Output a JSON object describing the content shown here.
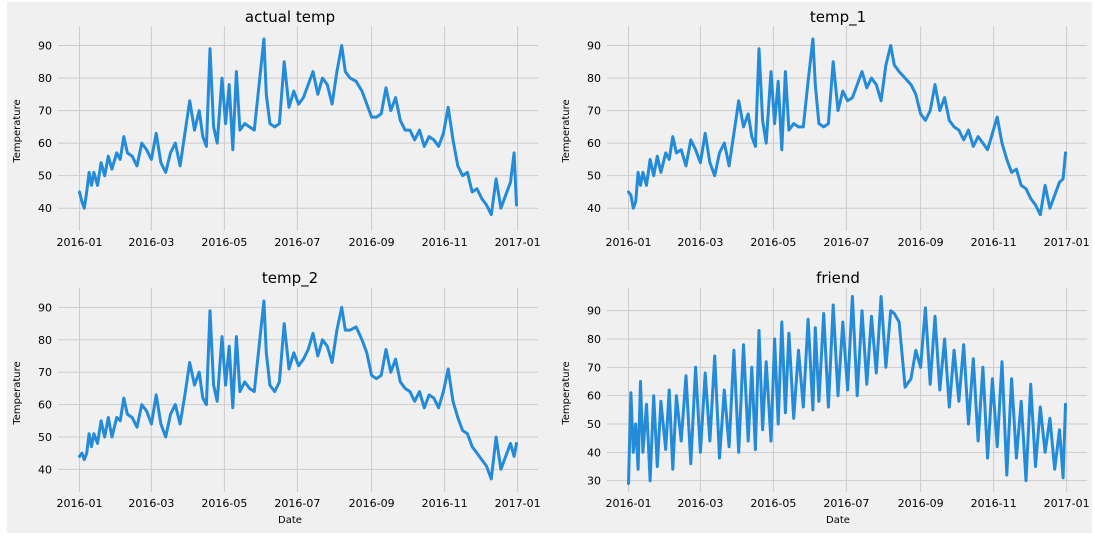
{
  "chart_data": [
    {
      "type": "line",
      "title": "actual temp",
      "xlabel": "",
      "ylabel": "Temperature",
      "x_ticks": [
        "2016-01",
        "2016-03",
        "2016-05",
        "2016-07",
        "2016-09",
        "2016-11",
        "2017-01"
      ],
      "y_ticks": [
        40,
        50,
        60,
        70,
        80,
        90
      ],
      "xlim": [
        "2015-12-14",
        "2017-01-18"
      ],
      "ylim": [
        33,
        96
      ],
      "grid": true,
      "color": "#238bd8",
      "series": [
        {
          "x": [
            "2016-01-01",
            "2016-01-03",
            "2016-01-05",
            "2016-01-07",
            "2016-01-09",
            "2016-01-11",
            "2016-01-13",
            "2016-01-16",
            "2016-01-19",
            "2016-01-22",
            "2016-01-25",
            "2016-01-28",
            "2016-02-01",
            "2016-02-04",
            "2016-02-07",
            "2016-02-10",
            "2016-02-14",
            "2016-02-18",
            "2016-02-22",
            "2016-02-26",
            "2016-03-01",
            "2016-03-05",
            "2016-03-09",
            "2016-03-13",
            "2016-03-17",
            "2016-03-21",
            "2016-03-25",
            "2016-03-29",
            "2016-04-02",
            "2016-04-06",
            "2016-04-10",
            "2016-04-13",
            "2016-04-16",
            "2016-04-19",
            "2016-04-22",
            "2016-04-25",
            "2016-04-29",
            "2016-05-02",
            "2016-05-05",
            "2016-05-08",
            "2016-05-11",
            "2016-05-14",
            "2016-05-18",
            "2016-05-22",
            "2016-05-26",
            "2016-05-30",
            "2016-06-03",
            "2016-06-05",
            "2016-06-08",
            "2016-06-12",
            "2016-06-16",
            "2016-06-20",
            "2016-06-24",
            "2016-06-28",
            "2016-07-02",
            "2016-07-06",
            "2016-07-10",
            "2016-07-14",
            "2016-07-18",
            "2016-07-22",
            "2016-07-26",
            "2016-07-30",
            "2016-08-03",
            "2016-08-07",
            "2016-08-10",
            "2016-08-14",
            "2016-08-19",
            "2016-08-24",
            "2016-08-28",
            "2016-09-01",
            "2016-09-05",
            "2016-09-09",
            "2016-09-13",
            "2016-09-17",
            "2016-09-21",
            "2016-09-25",
            "2016-09-29",
            "2016-10-03",
            "2016-10-07",
            "2016-10-11",
            "2016-10-15",
            "2016-10-19",
            "2016-10-23",
            "2016-10-27",
            "2016-10-31",
            "2016-11-04",
            "2016-11-08",
            "2016-11-12",
            "2016-11-16",
            "2016-11-20",
            "2016-11-24",
            "2016-11-28",
            "2016-12-02",
            "2016-12-06",
            "2016-12-10",
            "2016-12-14",
            "2016-12-18",
            "2016-12-22",
            "2016-12-26",
            "2016-12-29",
            "2016-12-31"
          ],
          "y": [
            45,
            42,
            40,
            45,
            51,
            47,
            51,
            47,
            54,
            50,
            56,
            52,
            57,
            55,
            62,
            57,
            56,
            53,
            60,
            58,
            55,
            63,
            54,
            51,
            57,
            60,
            53,
            63,
            73,
            64,
            70,
            62,
            59,
            89,
            65,
            60,
            80,
            66,
            78,
            58,
            82,
            64,
            66,
            65,
            64,
            78,
            92,
            75,
            66,
            65,
            66,
            85,
            71,
            76,
            72,
            74,
            78,
            82,
            75,
            80,
            78,
            72,
            82,
            90,
            82,
            80,
            79,
            76,
            72,
            68,
            68,
            69,
            77,
            70,
            74,
            67,
            64,
            64,
            61,
            64,
            59,
            62,
            61,
            59,
            63,
            71,
            61,
            53,
            50,
            51,
            45,
            46,
            43,
            41,
            38,
            49,
            40,
            44,
            48,
            57,
            41
          ]
        }
      ]
    },
    {
      "type": "line",
      "title": "temp_1",
      "xlabel": "",
      "ylabel": "Temperature",
      "x_ticks": [
        "2016-01",
        "2016-03",
        "2016-05",
        "2016-07",
        "2016-09",
        "2016-11",
        "2017-01"
      ],
      "y_ticks": [
        40,
        50,
        60,
        70,
        80,
        90
      ],
      "xlim": [
        "2015-12-14",
        "2017-01-18"
      ],
      "ylim": [
        33,
        96
      ],
      "grid": true,
      "color": "#238bd8",
      "series": [
        {
          "x": [
            "2016-01-01",
            "2016-01-03",
            "2016-01-05",
            "2016-01-07",
            "2016-01-09",
            "2016-01-11",
            "2016-01-13",
            "2016-01-16",
            "2016-01-19",
            "2016-01-22",
            "2016-01-25",
            "2016-01-28",
            "2016-02-01",
            "2016-02-04",
            "2016-02-07",
            "2016-02-10",
            "2016-02-14",
            "2016-02-18",
            "2016-02-22",
            "2016-02-26",
            "2016-03-01",
            "2016-03-05",
            "2016-03-09",
            "2016-03-13",
            "2016-03-17",
            "2016-03-21",
            "2016-03-25",
            "2016-03-29",
            "2016-04-02",
            "2016-04-06",
            "2016-04-10",
            "2016-04-13",
            "2016-04-16",
            "2016-04-19",
            "2016-04-22",
            "2016-04-25",
            "2016-04-29",
            "2016-05-02",
            "2016-05-05",
            "2016-05-08",
            "2016-05-11",
            "2016-05-14",
            "2016-05-18",
            "2016-05-22",
            "2016-05-26",
            "2016-05-30",
            "2016-06-03",
            "2016-06-05",
            "2016-06-08",
            "2016-06-12",
            "2016-06-16",
            "2016-06-20",
            "2016-06-24",
            "2016-06-28",
            "2016-07-02",
            "2016-07-06",
            "2016-07-10",
            "2016-07-14",
            "2016-07-18",
            "2016-07-22",
            "2016-07-26",
            "2016-07-30",
            "2016-08-03",
            "2016-08-07",
            "2016-08-10",
            "2016-08-14",
            "2016-08-19",
            "2016-08-24",
            "2016-08-28",
            "2016-09-01",
            "2016-09-05",
            "2016-09-09",
            "2016-09-13",
            "2016-09-17",
            "2016-09-21",
            "2016-09-25",
            "2016-09-29",
            "2016-10-03",
            "2016-10-07",
            "2016-10-11",
            "2016-10-15",
            "2016-10-19",
            "2016-10-23",
            "2016-10-27",
            "2016-10-31",
            "2016-11-04",
            "2016-11-08",
            "2016-11-12",
            "2016-11-16",
            "2016-11-20",
            "2016-11-24",
            "2016-11-28",
            "2016-12-02",
            "2016-12-06",
            "2016-12-10",
            "2016-12-14",
            "2016-12-18",
            "2016-12-22",
            "2016-12-26",
            "2016-12-29",
            "2016-12-31"
          ],
          "y": [
            45,
            44,
            40,
            42,
            51,
            47,
            51,
            47,
            55,
            50,
            56,
            51,
            57,
            55,
            62,
            57,
            58,
            53,
            61,
            58,
            54,
            63,
            54,
            50,
            57,
            60,
            53,
            63,
            73,
            65,
            69,
            62,
            59,
            89,
            67,
            60,
            82,
            66,
            79,
            58,
            82,
            64,
            66,
            65,
            65,
            79,
            92,
            78,
            66,
            65,
            66,
            85,
            70,
            76,
            73,
            74,
            78,
            82,
            77,
            80,
            78,
            73,
            84,
            90,
            84,
            82,
            80,
            78,
            75,
            69,
            67,
            70,
            78,
            70,
            74,
            67,
            65,
            64,
            61,
            64,
            59,
            62,
            60,
            58,
            63,
            68,
            60,
            55,
            51,
            52,
            47,
            46,
            43,
            41,
            38,
            47,
            40,
            44,
            48,
            49,
            57
          ]
        }
      ]
    },
    {
      "type": "line",
      "title": "temp_2",
      "xlabel": "Date",
      "ylabel": "Temperature",
      "x_ticks": [
        "2016-01",
        "2016-03",
        "2016-05",
        "2016-07",
        "2016-09",
        "2016-11",
        "2017-01"
      ],
      "y_ticks": [
        40,
        50,
        60,
        70,
        80,
        90
      ],
      "xlim": [
        "2015-12-14",
        "2017-01-18"
      ],
      "ylim": [
        33,
        96
      ],
      "grid": true,
      "color": "#238bd8",
      "series": [
        {
          "x": [
            "2016-01-01",
            "2016-01-03",
            "2016-01-05",
            "2016-01-07",
            "2016-01-09",
            "2016-01-11",
            "2016-01-13",
            "2016-01-16",
            "2016-01-19",
            "2016-01-22",
            "2016-01-25",
            "2016-01-28",
            "2016-02-01",
            "2016-02-04",
            "2016-02-07",
            "2016-02-10",
            "2016-02-14",
            "2016-02-18",
            "2016-02-22",
            "2016-02-26",
            "2016-03-01",
            "2016-03-05",
            "2016-03-09",
            "2016-03-13",
            "2016-03-17",
            "2016-03-21",
            "2016-03-25",
            "2016-03-29",
            "2016-04-02",
            "2016-04-06",
            "2016-04-10",
            "2016-04-13",
            "2016-04-16",
            "2016-04-19",
            "2016-04-22",
            "2016-04-25",
            "2016-04-29",
            "2016-05-02",
            "2016-05-05",
            "2016-05-08",
            "2016-05-11",
            "2016-05-14",
            "2016-05-18",
            "2016-05-22",
            "2016-05-26",
            "2016-05-30",
            "2016-06-03",
            "2016-06-05",
            "2016-06-08",
            "2016-06-12",
            "2016-06-16",
            "2016-06-20",
            "2016-06-24",
            "2016-06-28",
            "2016-07-02",
            "2016-07-06",
            "2016-07-10",
            "2016-07-14",
            "2016-07-18",
            "2016-07-22",
            "2016-07-26",
            "2016-07-30",
            "2016-08-03",
            "2016-08-07",
            "2016-08-10",
            "2016-08-14",
            "2016-08-19",
            "2016-08-24",
            "2016-08-28",
            "2016-09-01",
            "2016-09-05",
            "2016-09-09",
            "2016-09-13",
            "2016-09-17",
            "2016-09-21",
            "2016-09-25",
            "2016-09-29",
            "2016-10-03",
            "2016-10-07",
            "2016-10-11",
            "2016-10-15",
            "2016-10-19",
            "2016-10-23",
            "2016-10-27",
            "2016-10-31",
            "2016-11-04",
            "2016-11-08",
            "2016-11-12",
            "2016-11-16",
            "2016-11-20",
            "2016-11-24",
            "2016-11-28",
            "2016-12-02",
            "2016-12-06",
            "2016-12-10",
            "2016-12-14",
            "2016-12-18",
            "2016-12-22",
            "2016-12-26",
            "2016-12-29",
            "2016-12-31"
          ],
          "y": [
            44,
            45,
            43,
            45,
            51,
            47,
            51,
            48,
            55,
            50,
            56,
            50,
            56,
            55,
            62,
            57,
            56,
            53,
            60,
            58,
            54,
            63,
            54,
            50,
            57,
            60,
            54,
            63,
            73,
            66,
            70,
            62,
            60,
            89,
            66,
            61,
            81,
            66,
            78,
            59,
            81,
            64,
            67,
            65,
            64,
            78,
            92,
            76,
            66,
            64,
            67,
            85,
            71,
            76,
            72,
            74,
            77,
            82,
            75,
            80,
            78,
            73,
            83,
            90,
            83,
            83,
            84,
            80,
            76,
            69,
            68,
            69,
            77,
            70,
            74,
            67,
            65,
            64,
            61,
            64,
            59,
            63,
            62,
            59,
            64,
            71,
            61,
            56,
            52,
            51,
            47,
            45,
            43,
            41,
            37,
            50,
            40,
            44,
            48,
            44,
            48
          ]
        }
      ]
    },
    {
      "type": "line",
      "title": "friend",
      "xlabel": "Date",
      "ylabel": "Temperature",
      "x_ticks": [
        "2016-01",
        "2016-03",
        "2016-05",
        "2016-07",
        "2016-09",
        "2016-11",
        "2017-01"
      ],
      "y_ticks": [
        30,
        40,
        50,
        60,
        70,
        80,
        90
      ],
      "xlim": [
        "2015-12-14",
        "2017-01-18"
      ],
      "ylim": [
        26,
        98
      ],
      "grid": true,
      "color": "#238bd8",
      "series": [
        {
          "x": [
            "2016-01-01",
            "2016-01-03",
            "2016-01-05",
            "2016-01-07",
            "2016-01-09",
            "2016-01-11",
            "2016-01-13",
            "2016-01-16",
            "2016-01-19",
            "2016-01-22",
            "2016-01-25",
            "2016-01-28",
            "2016-02-01",
            "2016-02-04",
            "2016-02-07",
            "2016-02-10",
            "2016-02-14",
            "2016-02-18",
            "2016-02-22",
            "2016-02-26",
            "2016-03-01",
            "2016-03-05",
            "2016-03-09",
            "2016-03-13",
            "2016-03-17",
            "2016-03-21",
            "2016-03-25",
            "2016-03-29",
            "2016-04-02",
            "2016-04-06",
            "2016-04-10",
            "2016-04-13",
            "2016-04-16",
            "2016-04-19",
            "2016-04-22",
            "2016-04-25",
            "2016-04-29",
            "2016-05-02",
            "2016-05-05",
            "2016-05-08",
            "2016-05-11",
            "2016-05-14",
            "2016-05-18",
            "2016-05-22",
            "2016-05-26",
            "2016-05-30",
            "2016-06-03",
            "2016-06-05",
            "2016-06-08",
            "2016-06-12",
            "2016-06-16",
            "2016-06-20",
            "2016-06-24",
            "2016-06-28",
            "2016-07-02",
            "2016-07-06",
            "2016-07-10",
            "2016-07-14",
            "2016-07-18",
            "2016-07-22",
            "2016-07-26",
            "2016-07-30",
            "2016-08-03",
            "2016-08-07",
            "2016-08-10",
            "2016-08-14",
            "2016-08-19",
            "2016-08-24",
            "2016-08-28",
            "2016-09-01",
            "2016-09-05",
            "2016-09-09",
            "2016-09-13",
            "2016-09-17",
            "2016-09-21",
            "2016-09-25",
            "2016-09-29",
            "2016-10-03",
            "2016-10-07",
            "2016-10-11",
            "2016-10-15",
            "2016-10-19",
            "2016-10-23",
            "2016-10-27",
            "2016-10-31",
            "2016-11-04",
            "2016-11-08",
            "2016-11-12",
            "2016-11-16",
            "2016-11-20",
            "2016-11-24",
            "2016-11-28",
            "2016-12-02",
            "2016-12-06",
            "2016-12-10",
            "2016-12-14",
            "2016-12-18",
            "2016-12-22",
            "2016-12-26",
            "2016-12-29",
            "2016-12-31"
          ],
          "y": [
            29,
            61,
            40,
            50,
            34,
            65,
            40,
            57,
            30,
            60,
            35,
            58,
            41,
            62,
            34,
            60,
            44,
            67,
            36,
            70,
            40,
            68,
            44,
            74,
            38,
            62,
            42,
            76,
            40,
            78,
            44,
            70,
            41,
            83,
            48,
            72,
            44,
            80,
            50,
            86,
            54,
            82,
            52,
            76,
            56,
            87,
            55,
            84,
            58,
            89,
            56,
            92,
            60,
            86,
            62,
            95,
            60,
            90,
            64,
            88,
            68,
            95,
            70,
            90,
            89,
            86,
            63,
            66,
            76,
            70,
            91,
            64,
            88,
            62,
            80,
            56,
            76,
            58,
            78,
            50,
            73,
            44,
            70,
            38,
            66,
            42,
            72,
            32,
            66,
            38,
            58,
            30,
            64,
            35,
            56,
            40,
            52,
            34,
            48,
            31,
            57
          ]
        }
      ]
    }
  ]
}
